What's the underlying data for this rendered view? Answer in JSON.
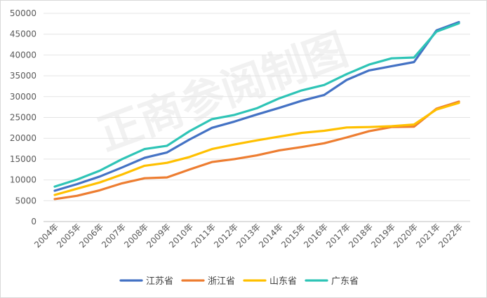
{
  "chart_data": {
    "type": "line",
    "title": "",
    "xlabel": "",
    "ylabel": "",
    "ylim": [
      0,
      50000
    ],
    "y_ticks": [
      0,
      5000,
      10000,
      15000,
      20000,
      25000,
      30000,
      35000,
      40000,
      45000,
      50000
    ],
    "grid": "horizontal",
    "legend_position": "bottom",
    "categories": [
      "2004年",
      "2005年",
      "2006年",
      "2007年",
      "2008年",
      "2009年",
      "2010年",
      "2011年",
      "2012年",
      "2013年",
      "2014年",
      "2015年",
      "2016年",
      "2017年",
      "2018年",
      "2019年",
      "2020年",
      "2021年",
      "2022年"
    ],
    "series": [
      {
        "name": "江苏省",
        "color": "#4472c4",
        "values": [
          7400,
          9000,
          10800,
          13000,
          15300,
          16600,
          19700,
          22500,
          24000,
          25700,
          27300,
          29000,
          30400,
          34000,
          36300,
          37300,
          38300,
          45900,
          47900
        ]
      },
      {
        "name": "浙江省",
        "color": "#ed7d31",
        "values": [
          5400,
          6200,
          7500,
          9200,
          10400,
          10600,
          12500,
          14300,
          15000,
          15900,
          17100,
          17900,
          18800,
          20200,
          21700,
          22700,
          22800,
          27100,
          28800
        ]
      },
      {
        "name": "山东省",
        "color": "#ffc000",
        "values": [
          6400,
          7900,
          9400,
          11300,
          13400,
          14100,
          15500,
          17400,
          18500,
          19500,
          20400,
          21300,
          21800,
          22600,
          22700,
          22900,
          23300,
          26900,
          28500
        ]
      },
      {
        "name": "广东省",
        "color": "#2ec4b6",
        "values": [
          8400,
          10100,
          12200,
          15000,
          17400,
          18200,
          21700,
          24600,
          25600,
          27200,
          29600,
          31500,
          32800,
          35400,
          37700,
          39200,
          39400,
          45600,
          47600
        ]
      }
    ]
  },
  "watermark": "正商参阅制图"
}
